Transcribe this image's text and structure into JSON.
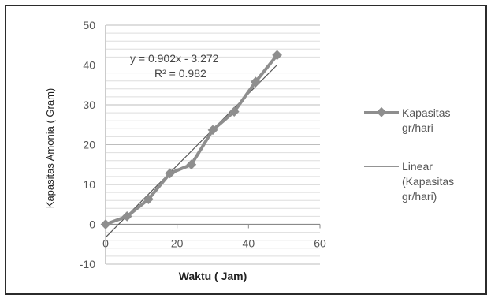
{
  "chart_data": {
    "type": "line",
    "xlabel": "Waktu ( Jam)",
    "ylabel": "Kapasitas Amonia ( Gram)",
    "xlim": [
      0,
      60
    ],
    "ylim": [
      -10,
      50
    ],
    "xticks": [
      0,
      20,
      40,
      60
    ],
    "yticks": [
      -10,
      0,
      10,
      20,
      30,
      40,
      50
    ],
    "grid": "horizontal",
    "legend_position": "right",
    "series": [
      {
        "name": "Kapasitas gr/hari",
        "legend_lines": [
          "Kapasitas",
          "gr/hari"
        ],
        "color": "#8e8e8e",
        "marker": "diamond",
        "x": [
          0,
          6,
          12,
          18,
          24,
          30,
          36,
          42,
          48
        ],
        "y": [
          0,
          2,
          6.3,
          12.8,
          15,
          23.7,
          28.3,
          35.8,
          42.5
        ]
      }
    ],
    "trendline": {
      "name": "Linear (Kapasitas gr/hari)",
      "legend_lines": [
        "Linear",
        "(Kapasitas",
        "gr/hari)"
      ],
      "color": "#555555",
      "slope": 0.902,
      "intercept": -3.272,
      "x_range": [
        0,
        48
      ]
    },
    "annotations": {
      "equation": "y = 0.902x - 3.272",
      "r_squared": "R² = 0.982"
    }
  }
}
